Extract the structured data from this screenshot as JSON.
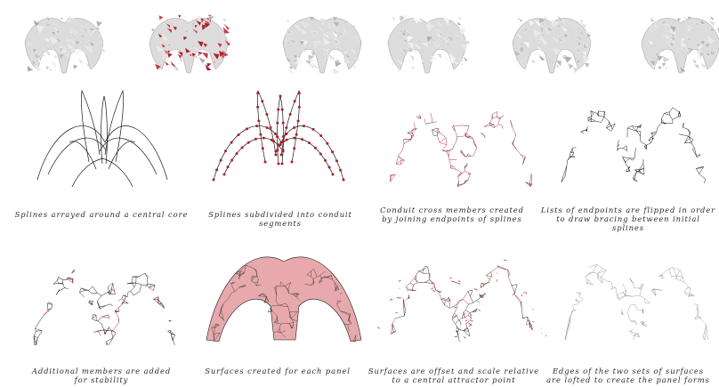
{
  "colors": {
    "accent_red": "#a8202a",
    "panel_fill": "#e7a9ad",
    "line_dark": "#1a1a1a",
    "line_light": "#8f8f8f",
    "background": "#ffffff"
  },
  "thumbnails": [
    {
      "name": "render-white-1",
      "tint": "white"
    },
    {
      "name": "render-red",
      "tint": "red"
    },
    {
      "name": "render-white-2",
      "tint": "white"
    },
    {
      "name": "render-white-3",
      "tint": "white"
    },
    {
      "name": "render-white-4",
      "tint": "white"
    },
    {
      "name": "render-white-5",
      "tint": "white"
    }
  ],
  "steps": [
    {
      "caption_1": "Splines arrayed around a central core",
      "caption_2": ""
    },
    {
      "caption_1": "Splines subdivided into conduit segments",
      "caption_2": ""
    },
    {
      "caption_1": "Conduit cross members created",
      "caption_2": "by joining endpoints of splines"
    },
    {
      "caption_1": "Lists of endpoints are flipped in order",
      "caption_2": "to draw bracing between initial splines"
    },
    {
      "caption_1": "Additional members are added",
      "caption_2": "for stability"
    },
    {
      "caption_1": "Surfaces created for each panel",
      "caption_2": ""
    },
    {
      "caption_1": "Surfaces are offset and scale relative",
      "caption_2": "to a central attractor point"
    },
    {
      "caption_1": "Edges of the two sets of surfaces",
      "caption_2": "are lofted to create the panel forms"
    }
  ]
}
